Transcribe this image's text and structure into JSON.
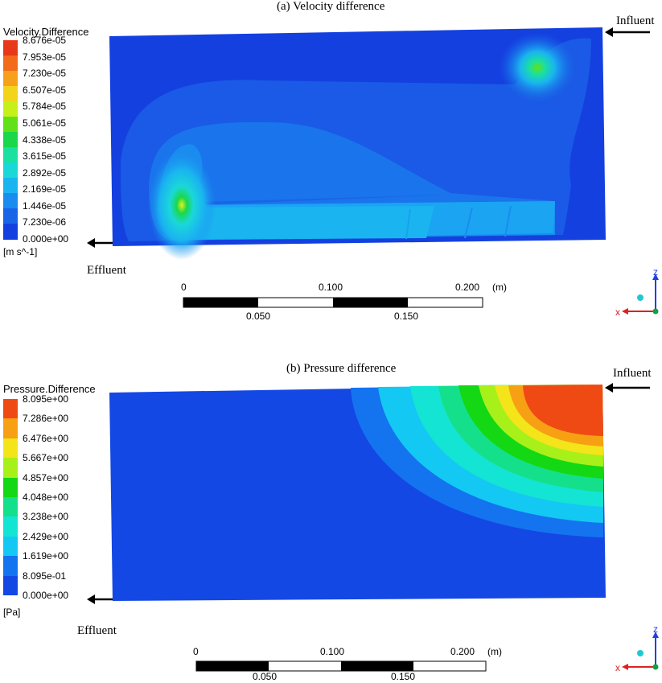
{
  "panel_a": {
    "title": "(a) Velocity difference",
    "legend_title": "Velocity.Difference",
    "legend_units": "[m s^-1]",
    "legend_ticks": [
      "8.676e-05",
      "7.953e-05",
      "7.230e-05",
      "6.507e-05",
      "5.784e-05",
      "5.061e-05",
      "4.338e-05",
      "3.615e-05",
      "2.892e-05",
      "2.169e-05",
      "1.446e-05",
      "7.230e-06",
      "0.000e+00"
    ],
    "influent_label": "Influent",
    "effluent_label": "Effluent",
    "scale": {
      "top_labels": [
        "0",
        "0.100",
        "0.200"
      ],
      "unit": "(m)",
      "bottom_labels": [
        "0.050",
        "0.150"
      ]
    }
  },
  "panel_b": {
    "title": "(b) Pressure difference",
    "legend_title": "Pressure.Difference",
    "legend_units": "[Pa]",
    "legend_ticks": [
      "8.095e+00",
      "7.286e+00",
      "6.476e+00",
      "5.667e+00",
      "4.857e+00",
      "4.048e+00",
      "3.238e+00",
      "2.429e+00",
      "1.619e+00",
      "8.095e-01",
      "0.000e+00"
    ],
    "influent_label": "Influent",
    "effluent_label": "Effluent",
    "scale": {
      "top_labels": [
        "0",
        "0.100",
        "0.200"
      ],
      "unit": "(m)",
      "bottom_labels": [
        "0.050",
        "0.150"
      ]
    }
  },
  "colors": {
    "velocity_bands": [
      "#e8381a",
      "#f26b1a",
      "#f7a11a",
      "#f2d41a",
      "#c6f01a",
      "#62e01a",
      "#1ad84a",
      "#1ae0a0",
      "#1ad8d8",
      "#1ab4f0",
      "#1a8cf0",
      "#1a64e8",
      "#1440e0"
    ],
    "pressure_bands": [
      "#f04a14",
      "#f7a014",
      "#f4e41a",
      "#a8f01a",
      "#14d814",
      "#14e08c",
      "#14e4d4",
      "#14c8f4",
      "#1474f0",
      "#1448e4"
    ],
    "axis_x": "#e02020",
    "axis_z": "#2040e0",
    "axis_dot": "#20c8d0",
    "axis_origin": "#10a040"
  },
  "axis_labels": {
    "x": "x",
    "z": "z"
  }
}
